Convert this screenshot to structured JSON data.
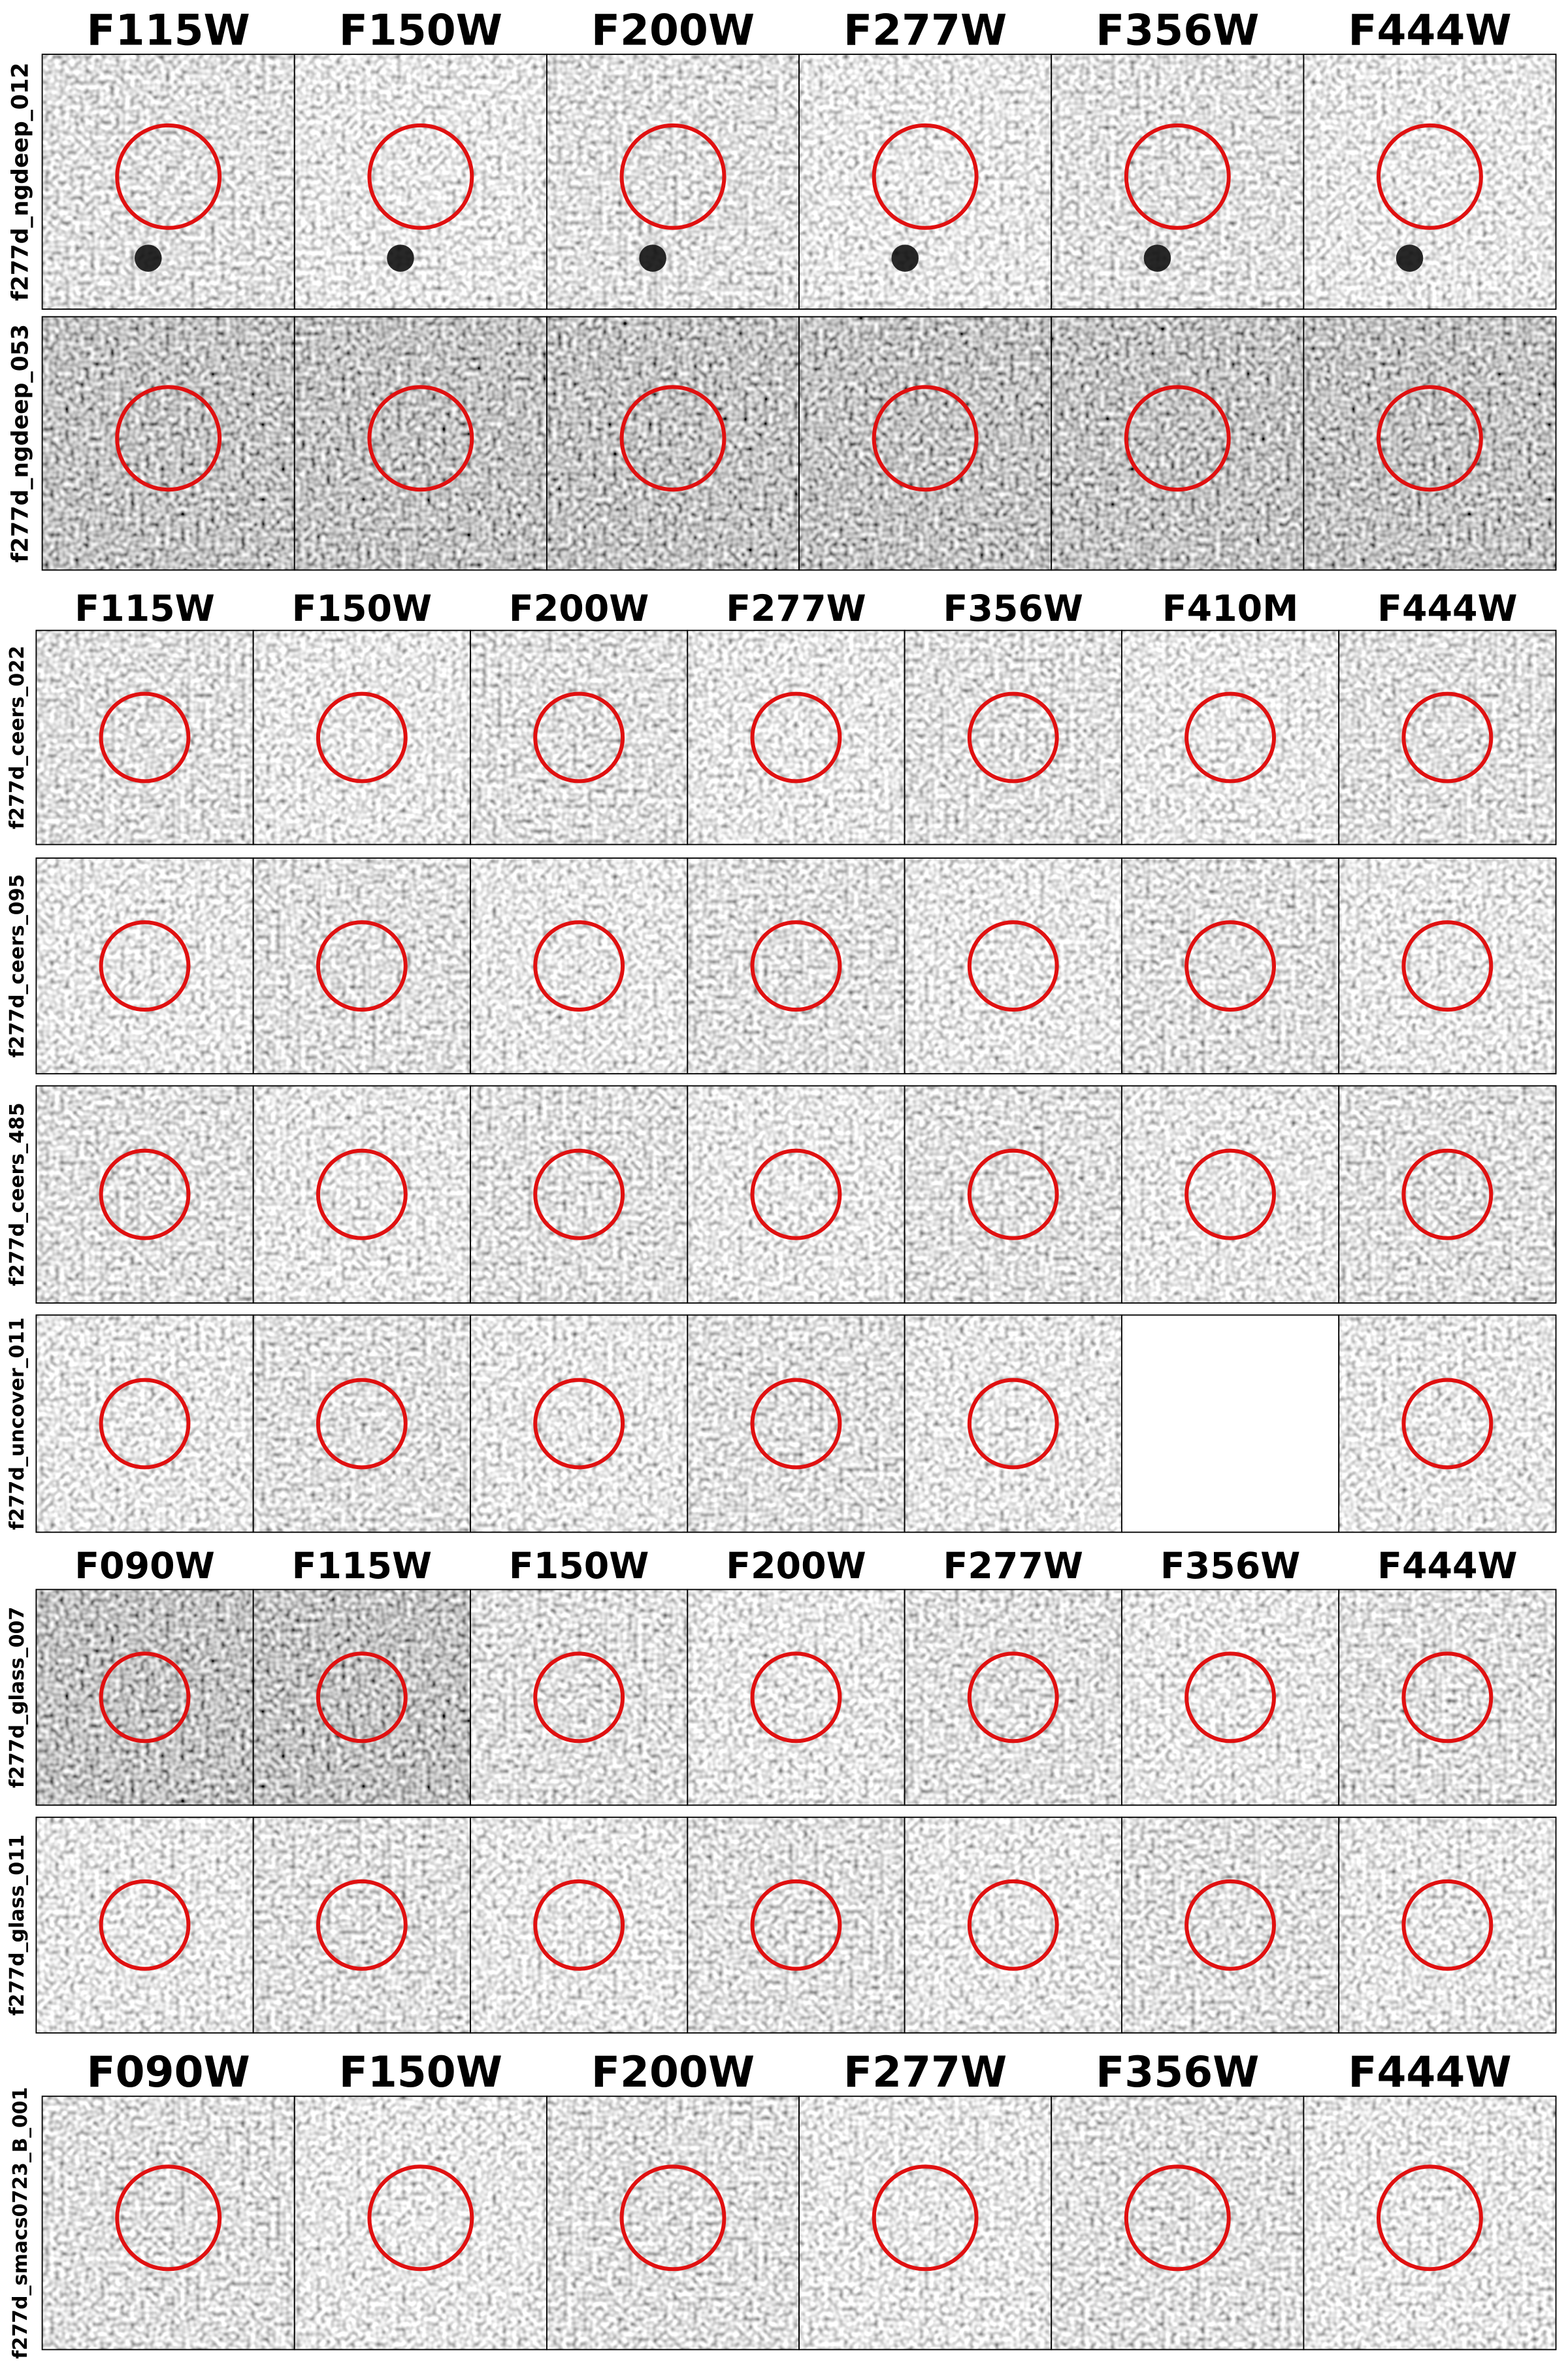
{
  "groups": [
    {
      "filters": [
        "F115W",
        "F150W",
        "F200W",
        "F277W",
        "F356W",
        "F444W"
      ],
      "rows": [
        {
          "label": "f277d_ngdeep_012"
        },
        {
          "label": "f277d_ngdeep_053"
        }
      ]
    },
    {
      "filters": [
        "F115W",
        "F150W",
        "F200W",
        "F277W",
        "F356W",
        "F410M",
        "F444W"
      ],
      "rows": [
        {
          "label": "f277d_ceers_022"
        },
        {
          "label": "f277d_ceers_095"
        },
        {
          "label": "f277d_ceers_485"
        },
        {
          "label": "f277d_uncover_011"
        }
      ]
    },
    {
      "filters": [
        "F090W",
        "F115W",
        "F150W",
        "F200W",
        "F277W",
        "F356W",
        "F444W"
      ],
      "rows": [
        {
          "label": "f277d_glass_007"
        },
        {
          "label": "f277d_glass_011"
        }
      ]
    },
    {
      "filters": [
        "F090W",
        "F150W",
        "F200W",
        "F277W",
        "F356W",
        "F444W"
      ],
      "rows": [
        {
          "label": "f277d_smacs0723_B_001"
        }
      ]
    }
  ]
}
